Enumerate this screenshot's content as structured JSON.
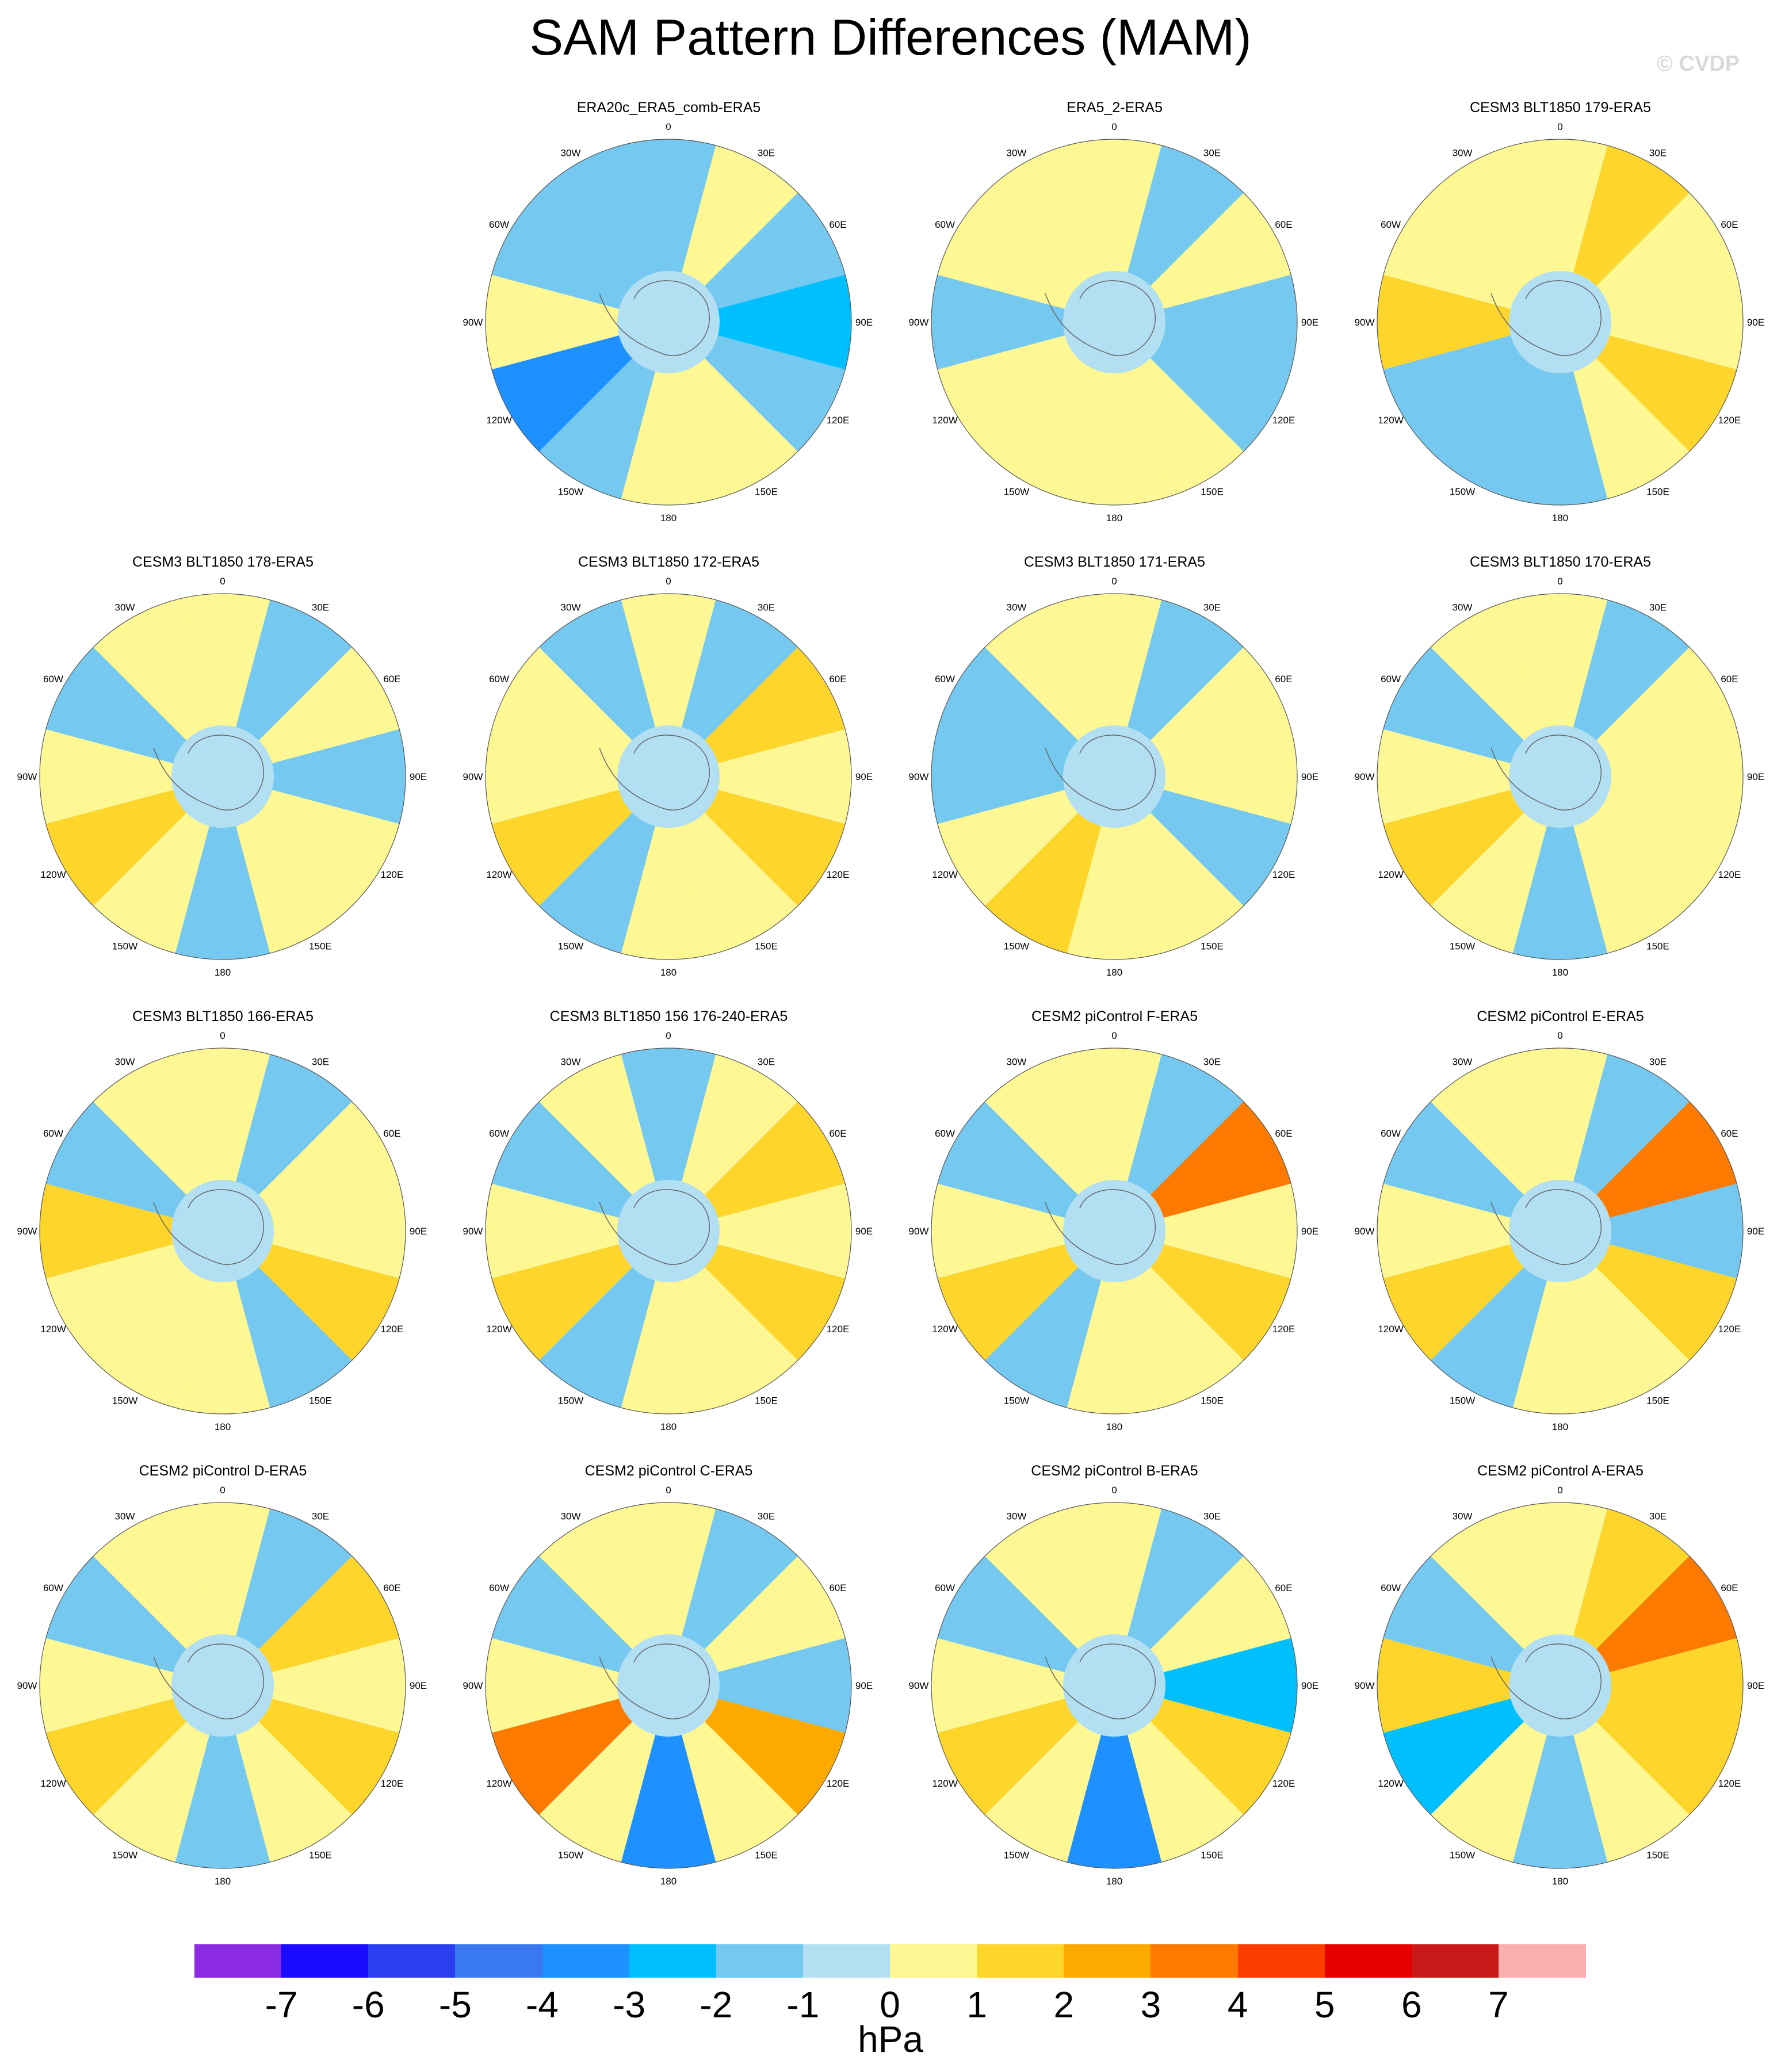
{
  "title": "SAM Pattern Differences (MAM)",
  "watermark": "© CVDP",
  "chart_data": {
    "type": "heatmap",
    "projection": "south polar stereographic",
    "panels": [
      {
        "title": "ERA20c_ERA5_comb-ERA5",
        "field": [
          [
            0,
            -1
          ],
          [
            30,
            0
          ],
          [
            60,
            -1
          ],
          [
            90,
            -2
          ],
          [
            120,
            -1
          ],
          [
            150,
            0
          ],
          [
            180,
            0
          ],
          [
            210,
            -1
          ],
          [
            240,
            -3
          ],
          [
            270,
            0
          ],
          [
            300,
            -1
          ],
          [
            330,
            -1
          ]
        ]
      },
      {
        "title": "ERA5_2-ERA5",
        "field": [
          [
            0,
            0
          ],
          [
            30,
            -1
          ],
          [
            60,
            0
          ],
          [
            90,
            -1
          ],
          [
            120,
            -1
          ],
          [
            150,
            0
          ],
          [
            180,
            0
          ],
          [
            210,
            0
          ],
          [
            240,
            0
          ],
          [
            270,
            -1
          ],
          [
            300,
            0
          ],
          [
            330,
            0
          ]
        ]
      },
      {
        "title": "CESM3 BLT1850 179-ERA5",
        "field": [
          [
            0,
            0
          ],
          [
            30,
            1
          ],
          [
            60,
            0
          ],
          [
            90,
            0
          ],
          [
            120,
            1
          ],
          [
            150,
            0
          ],
          [
            180,
            -1
          ],
          [
            210,
            -1
          ],
          [
            240,
            -1
          ],
          [
            270,
            1
          ],
          [
            300,
            0
          ],
          [
            330,
            0
          ]
        ]
      },
      {
        "title": "CESM3 BLT1850 178-ERA5",
        "field": [
          [
            0,
            0
          ],
          [
            30,
            -1
          ],
          [
            60,
            0
          ],
          [
            90,
            -1
          ],
          [
            120,
            0
          ],
          [
            150,
            0
          ],
          [
            180,
            -1
          ],
          [
            210,
            0
          ],
          [
            240,
            1
          ],
          [
            270,
            0
          ],
          [
            300,
            -1
          ],
          [
            330,
            0
          ]
        ]
      },
      {
        "title": "CESM3 BLT1850 172-ERA5",
        "field": [
          [
            0,
            0
          ],
          [
            30,
            -1
          ],
          [
            60,
            1
          ],
          [
            90,
            0
          ],
          [
            120,
            1
          ],
          [
            150,
            0
          ],
          [
            180,
            0
          ],
          [
            210,
            -1
          ],
          [
            240,
            1
          ],
          [
            270,
            0
          ],
          [
            300,
            0
          ],
          [
            330,
            -1
          ]
        ]
      },
      {
        "title": "CESM3 BLT1850 171-ERA5",
        "field": [
          [
            0,
            0
          ],
          [
            30,
            -1
          ],
          [
            60,
            0
          ],
          [
            90,
            0
          ],
          [
            120,
            -1
          ],
          [
            150,
            0
          ],
          [
            180,
            0
          ],
          [
            210,
            1
          ],
          [
            240,
            0
          ],
          [
            270,
            -1
          ],
          [
            300,
            -1
          ],
          [
            330,
            0
          ]
        ]
      },
      {
        "title": "CESM3 BLT1850 170-ERA5",
        "field": [
          [
            0,
            0
          ],
          [
            30,
            -1
          ],
          [
            60,
            0
          ],
          [
            90,
            0
          ],
          [
            120,
            0
          ],
          [
            150,
            0
          ],
          [
            180,
            -1
          ],
          [
            210,
            0
          ],
          [
            240,
            1
          ],
          [
            270,
            0
          ],
          [
            300,
            -1
          ],
          [
            330,
            0
          ]
        ]
      },
      {
        "title": "CESM3 BLT1850 166-ERA5",
        "field": [
          [
            0,
            0
          ],
          [
            30,
            -1
          ],
          [
            60,
            0
          ],
          [
            90,
            0
          ],
          [
            120,
            1
          ],
          [
            150,
            -1
          ],
          [
            180,
            0
          ],
          [
            210,
            0
          ],
          [
            240,
            0
          ],
          [
            270,
            1
          ],
          [
            300,
            -1
          ],
          [
            330,
            0
          ]
        ]
      },
      {
        "title": "CESM3 BLT1850 156 176-240-ERA5",
        "field": [
          [
            0,
            -1
          ],
          [
            30,
            0
          ],
          [
            60,
            1
          ],
          [
            90,
            0
          ],
          [
            120,
            1
          ],
          [
            150,
            0
          ],
          [
            180,
            0
          ],
          [
            210,
            -1
          ],
          [
            240,
            1
          ],
          [
            270,
            0
          ],
          [
            300,
            -1
          ],
          [
            330,
            0
          ]
        ]
      },
      {
        "title": "CESM2 piControl F-ERA5",
        "field": [
          [
            0,
            0
          ],
          [
            30,
            -1
          ],
          [
            60,
            3
          ],
          [
            90,
            0
          ],
          [
            120,
            1
          ],
          [
            150,
            0
          ],
          [
            180,
            0
          ],
          [
            210,
            -1
          ],
          [
            240,
            1
          ],
          [
            270,
            0
          ],
          [
            300,
            -1
          ],
          [
            330,
            0
          ]
        ]
      },
      {
        "title": "CESM2 piControl E-ERA5",
        "field": [
          [
            0,
            0
          ],
          [
            30,
            -1
          ],
          [
            60,
            3
          ],
          [
            90,
            -1
          ],
          [
            120,
            1
          ],
          [
            150,
            0
          ],
          [
            180,
            0
          ],
          [
            210,
            -1
          ],
          [
            240,
            1
          ],
          [
            270,
            0
          ],
          [
            300,
            -1
          ],
          [
            330,
            0
          ]
        ]
      },
      {
        "title": "CESM2 piControl D-ERA5",
        "field": [
          [
            0,
            0
          ],
          [
            30,
            -1
          ],
          [
            60,
            1
          ],
          [
            90,
            0
          ],
          [
            120,
            1
          ],
          [
            150,
            0
          ],
          [
            180,
            -1
          ],
          [
            210,
            0
          ],
          [
            240,
            1
          ],
          [
            270,
            0
          ],
          [
            300,
            -1
          ],
          [
            330,
            0
          ]
        ]
      },
      {
        "title": "CESM2 piControl C-ERA5",
        "field": [
          [
            0,
            0
          ],
          [
            30,
            -1
          ],
          [
            60,
            0
          ],
          [
            90,
            -1
          ],
          [
            120,
            2
          ],
          [
            150,
            0
          ],
          [
            180,
            -3
          ],
          [
            210,
            0
          ],
          [
            240,
            3
          ],
          [
            270,
            0
          ],
          [
            300,
            -1
          ],
          [
            330,
            0
          ]
        ]
      },
      {
        "title": "CESM2 piControl B-ERA5",
        "field": [
          [
            0,
            0
          ],
          [
            30,
            -1
          ],
          [
            60,
            0
          ],
          [
            90,
            -2
          ],
          [
            120,
            1
          ],
          [
            150,
            0
          ],
          [
            180,
            -3
          ],
          [
            210,
            0
          ],
          [
            240,
            1
          ],
          [
            270,
            0
          ],
          [
            300,
            -1
          ],
          [
            330,
            0
          ]
        ]
      },
      {
        "title": "CESM2 piControl A-ERA5",
        "field": [
          [
            0,
            0
          ],
          [
            30,
            1
          ],
          [
            60,
            3
          ],
          [
            90,
            1
          ],
          [
            120,
            1
          ],
          [
            150,
            0
          ],
          [
            180,
            -1
          ],
          [
            210,
            0
          ],
          [
            240,
            -2
          ],
          [
            270,
            1
          ],
          [
            300,
            -1
          ],
          [
            330,
            0
          ]
        ]
      }
    ],
    "longitude_labels": [
      "0",
      "30E",
      "60E",
      "90E",
      "120E",
      "150E",
      "180",
      "150W",
      "120W",
      "90W",
      "60W",
      "30W"
    ],
    "colorbar": {
      "units": "hPa",
      "tick_labels": [
        "-7",
        "-6",
        "-5",
        "-4",
        "-3",
        "-2",
        "-1",
        "0",
        "1",
        "2",
        "3",
        "4",
        "5",
        "6",
        "7"
      ],
      "colors": [
        "#8a2be2",
        "#1a0aff",
        "#2b3ff0",
        "#3a78f0",
        "#1e90ff",
        "#00bfff",
        "#75c8f0",
        "#b3dff3",
        "#fdf794",
        "#fdd52b",
        "#fca900",
        "#fc7a00",
        "#fc3d00",
        "#e60000",
        "#c91a1a",
        "#fbb0b0"
      ]
    }
  }
}
